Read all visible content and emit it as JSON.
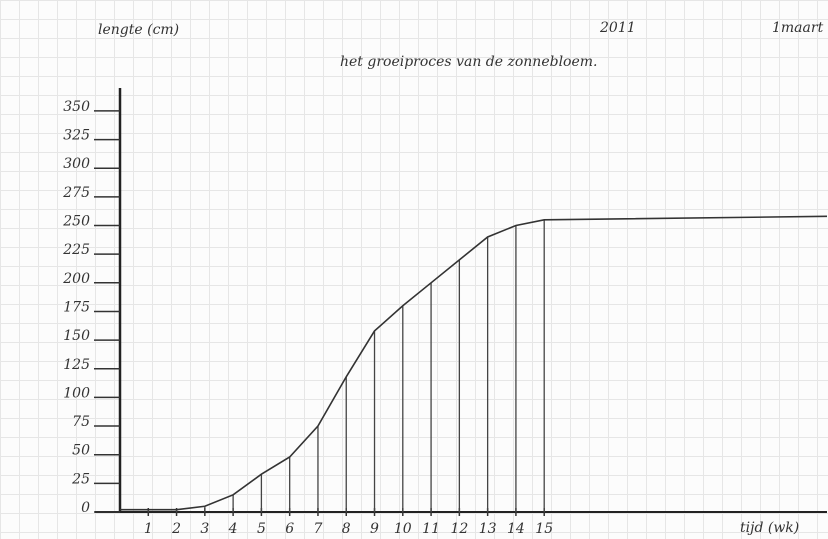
{
  "chart_data": {
    "type": "line",
    "title": "het groeiproces van de zonnebloem.",
    "y_label": "lengte (cm)",
    "x_label": "tijd (wk)",
    "annotations": [
      "2011",
      "1maart"
    ],
    "x": [
      0,
      1,
      2,
      3,
      4,
      5,
      6,
      7,
      8,
      9,
      10,
      11,
      12,
      13,
      14,
      15,
      25
    ],
    "values": [
      2,
      2,
      2,
      5,
      15,
      33,
      48,
      75,
      118,
      158,
      180,
      200,
      220,
      240,
      250,
      255,
      258
    ],
    "color": "#333333",
    "xlim": [
      0,
      25
    ],
    "ylim": [
      0,
      370
    ],
    "xticks": [
      1,
      2,
      3,
      4,
      5,
      6,
      7,
      8,
      9,
      10,
      11,
      12,
      13,
      14,
      15
    ],
    "yticks": [
      0,
      25,
      50,
      75,
      100,
      125,
      150,
      175,
      200,
      225,
      250,
      275,
      300,
      325,
      350
    ],
    "drop_lines": true
  }
}
